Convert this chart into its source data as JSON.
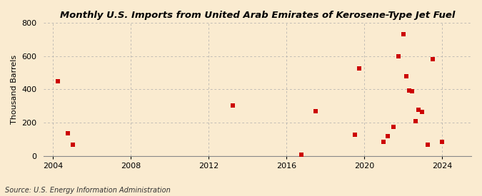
{
  "title": "Monthly U.S. Imports from United Arab Emirates of Kerosene-Type Jet Fuel",
  "ylabel": "Thousand Barrels",
  "source": "Source: U.S. Energy Information Administration",
  "background_color": "#faebd0",
  "plot_background": "#faebd0",
  "marker_color": "#cc0000",
  "marker_size": 4,
  "xlim": [
    2003.5,
    2025.5
  ],
  "ylim": [
    0,
    800
  ],
  "xticks": [
    2004,
    2008,
    2012,
    2016,
    2020,
    2024
  ],
  "yticks": [
    0,
    200,
    400,
    600,
    800
  ],
  "grid_color": "#aaaaaa",
  "title_fontsize": 9.5,
  "axis_fontsize": 8,
  "source_fontsize": 7,
  "data_points": [
    [
      2004.25,
      450
    ],
    [
      2004.75,
      138
    ],
    [
      2005.0,
      70
    ],
    [
      2013.25,
      305
    ],
    [
      2016.75,
      10
    ],
    [
      2017.5,
      270
    ],
    [
      2019.5,
      128
    ],
    [
      2019.75,
      525
    ],
    [
      2021.0,
      85
    ],
    [
      2021.2,
      120
    ],
    [
      2021.5,
      175
    ],
    [
      2021.75,
      600
    ],
    [
      2022.0,
      730
    ],
    [
      2022.15,
      480
    ],
    [
      2022.3,
      395
    ],
    [
      2022.45,
      390
    ],
    [
      2022.65,
      210
    ],
    [
      2022.8,
      280
    ],
    [
      2022.95,
      265
    ],
    [
      2023.25,
      70
    ],
    [
      2023.5,
      580
    ],
    [
      2024.0,
      85
    ]
  ]
}
